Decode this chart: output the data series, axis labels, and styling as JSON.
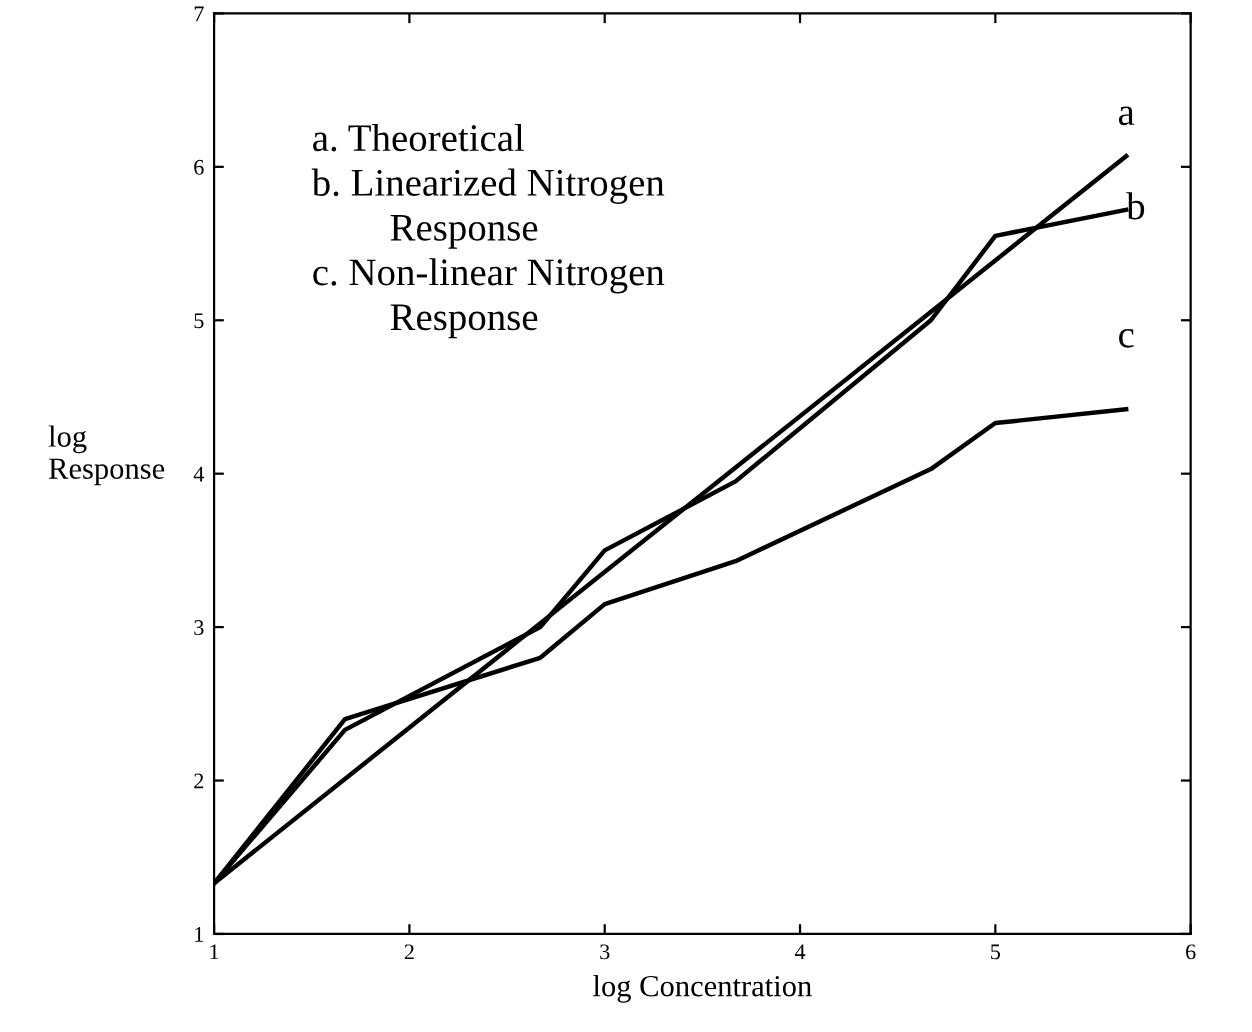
{
  "chart_data": {
    "type": "line",
    "xlabel": "log Concentration",
    "ylabel": "log\nResponse",
    "xlim": [
      1,
      6
    ],
    "ylim": [
      1,
      7
    ],
    "xticks": [
      1,
      2,
      3,
      4,
      5,
      6
    ],
    "yticks": [
      1,
      2,
      3,
      4,
      5,
      6,
      7
    ],
    "grid": false,
    "legend": "right",
    "annotations": [
      "a. Theoretical\nb. Linearized Nitrogen\n        Response\nc. Non-linear Nitrogen\n        Response"
    ],
    "series": [
      {
        "name": "a",
        "color": "#000000",
        "x": [
          1,
          5.67
        ],
        "values": [
          1.33,
          6.07
        ]
      },
      {
        "name": "b",
        "color": "#000000",
        "x": [
          1,
          1.67,
          2.67,
          3,
          3.67,
          4.67,
          5,
          5.67
        ],
        "values": [
          1.33,
          2.33,
          3.0,
          3.5,
          3.95,
          5.0,
          5.55,
          5.72
        ]
      },
      {
        "name": "c",
        "color": "#000000",
        "x": [
          1,
          1.67,
          2.67,
          3,
          3.67,
          4.67,
          5,
          5.67
        ],
        "values": [
          1.33,
          2.4,
          2.8,
          3.15,
          3.43,
          4.03,
          4.33,
          4.42
        ]
      }
    ]
  }
}
